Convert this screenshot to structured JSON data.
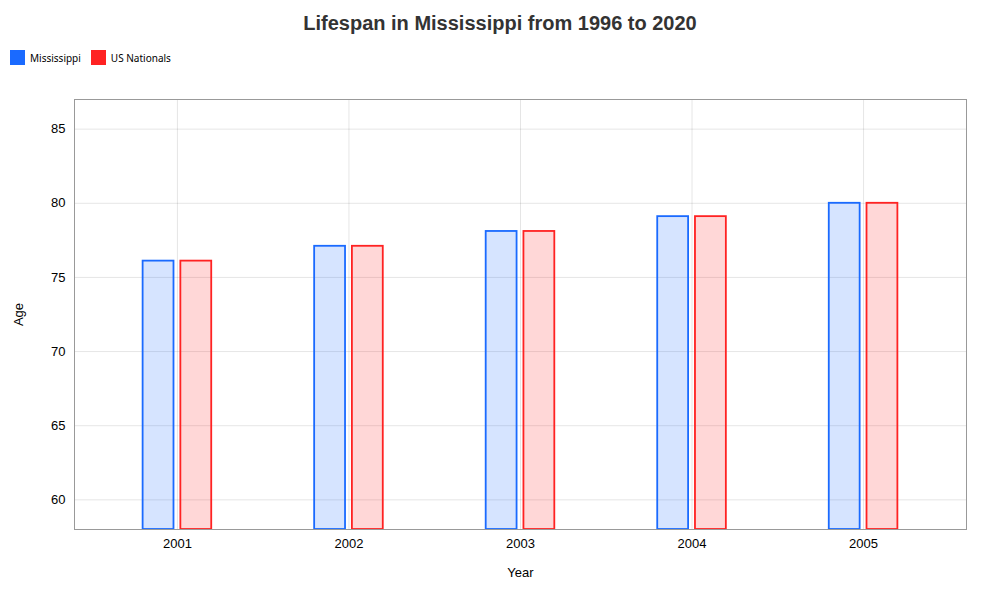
{
  "chart_data": {
    "type": "bar",
    "title": "Lifespan in Mississippi from 1996 to 2020",
    "xlabel": "Year",
    "ylabel": "Age",
    "categories": [
      "2001",
      "2002",
      "2003",
      "2004",
      "2005"
    ],
    "series": [
      {
        "name": "Mississippi",
        "color": "#1a6aff",
        "values": [
          76.1,
          77.1,
          78.1,
          79.1,
          80.0
        ]
      },
      {
        "name": "US Nationals",
        "color": "#ff2222",
        "values": [
          76.1,
          77.1,
          78.1,
          79.1,
          80.0
        ]
      }
    ],
    "ylim": [
      58,
      87
    ],
    "yticks": [
      60,
      65,
      70,
      75,
      80,
      85
    ],
    "grid": true,
    "legend": "top"
  }
}
